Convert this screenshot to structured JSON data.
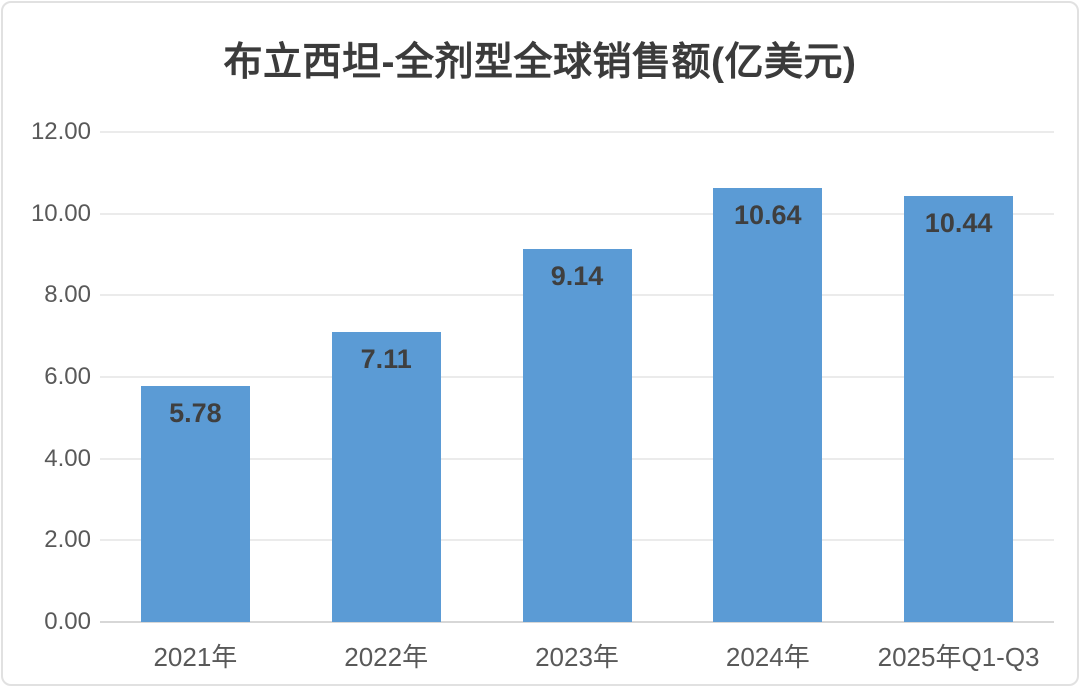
{
  "chart_data": {
    "type": "bar",
    "title": "布立西坦-全剂型全球销售额(亿美元)",
    "categories": [
      "2021年",
      "2022年",
      "2023年",
      "2024年",
      "2025年Q1-Q3"
    ],
    "values": [
      5.78,
      7.11,
      9.14,
      10.64,
      10.44
    ],
    "value_labels": [
      "5.78",
      "7.11",
      "9.14",
      "10.64",
      "10.44"
    ],
    "xlabel": "",
    "ylabel": "",
    "ylim": [
      0,
      12
    ],
    "yticks": [
      0,
      2,
      4,
      6,
      8,
      10,
      12
    ],
    "ytick_labels": [
      "0.00",
      "2.00",
      "4.00",
      "6.00",
      "8.00",
      "10.00",
      "12.00"
    ],
    "grid": true,
    "legend": "none",
    "colors": {
      "bar": "#5b9bd5",
      "title_text": "#3b3b3b",
      "value_label_text": "#3f3f3f",
      "axis_text": "#595959",
      "gridline": "#ebebeb",
      "axis_line": "#d7d7d7",
      "frame_border": "#e1e1e1",
      "background": "#ffffff"
    }
  }
}
